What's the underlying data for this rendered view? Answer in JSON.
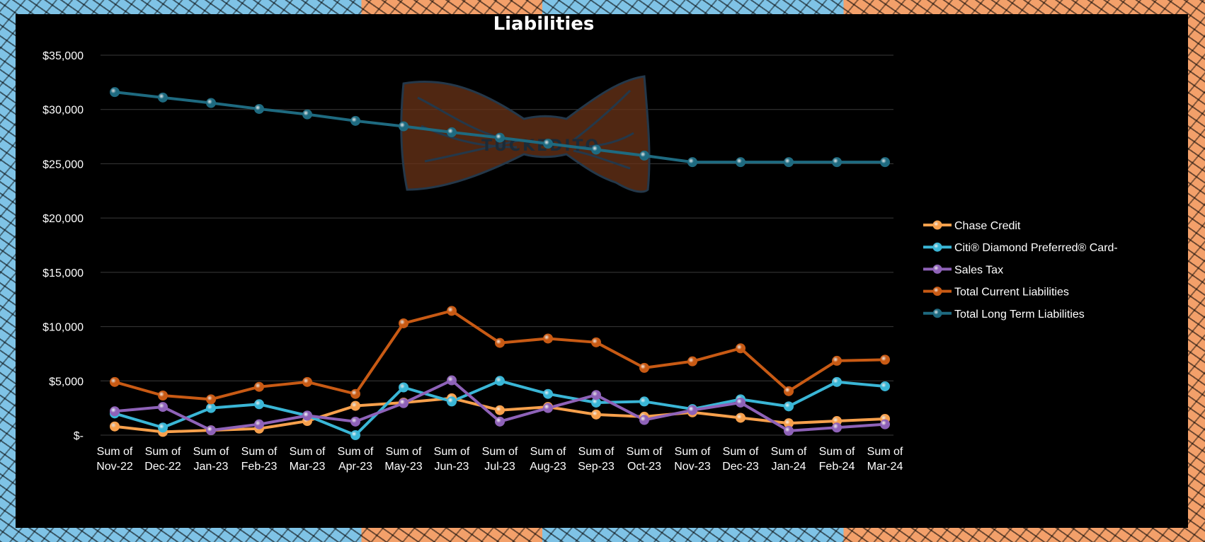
{
  "chart_data": {
    "type": "line",
    "title": "Liabilities",
    "xlabel": "",
    "ylabel": "",
    "ylim": [
      0,
      35000
    ],
    "y_ticks": [
      {
        "value": 0,
        "label": "$-"
      },
      {
        "value": 5000,
        "label": "$5,000"
      },
      {
        "value": 10000,
        "label": "$10,000"
      },
      {
        "value": 15000,
        "label": "$15,000"
      },
      {
        "value": 20000,
        "label": "$20,000"
      },
      {
        "value": 25000,
        "label": "$25,000"
      },
      {
        "value": 30000,
        "label": "$30,000"
      },
      {
        "value": 35000,
        "label": "$35,000"
      }
    ],
    "grid": true,
    "legend_position": "right",
    "categories": [
      [
        "Sum of",
        "Nov-22"
      ],
      [
        "Sum of",
        "Dec-22"
      ],
      [
        "Sum of",
        "Jan-23"
      ],
      [
        "Sum of",
        "Feb-23"
      ],
      [
        "Sum of",
        "Mar-23"
      ],
      [
        "Sum of",
        "Apr-23"
      ],
      [
        "Sum of",
        "May-23"
      ],
      [
        "Sum of",
        "Jun-23"
      ],
      [
        "Sum of",
        "Jul-23"
      ],
      [
        "Sum of",
        "Aug-23"
      ],
      [
        "Sum of",
        "Sep-23"
      ],
      [
        "Sum of",
        "Oct-23"
      ],
      [
        "Sum of",
        "Nov-23"
      ],
      [
        "Sum of",
        "Dec-23"
      ],
      [
        "Sum of",
        "Jan-24"
      ],
      [
        "Sum of",
        "Feb-24"
      ],
      [
        "Sum of",
        "Mar-24"
      ]
    ],
    "series": [
      {
        "name": "Chase Credit",
        "color": "#f7a04c",
        "values": [
          800,
          300,
          450,
          600,
          1300,
          2700,
          3000,
          3400,
          2300,
          2600,
          1900,
          1700,
          2100,
          1600,
          1100,
          1300,
          1500
        ]
      },
      {
        "name": "Citi® Diamond Preferred® Card-",
        "color": "#3ab6d6",
        "values": [
          2000,
          700,
          2500,
          2850,
          1800,
          0,
          4400,
          3100,
          5000,
          3800,
          3000,
          3100,
          2400,
          3300,
          2650,
          4900,
          4500
        ]
      },
      {
        "name": "Sales Tax",
        "color": "#8e62b8",
        "values": [
          2200,
          2600,
          450,
          1000,
          1800,
          1250,
          2950,
          5050,
          1250,
          2500,
          3700,
          1400,
          2300,
          3000,
          400,
          700,
          1000
        ]
      },
      {
        "name": "Total Current Liabilities",
        "color": "#c85a14",
        "values": [
          4900,
          3650,
          3300,
          4450,
          4900,
          3800,
          10300,
          11450,
          8500,
          8900,
          8550,
          6200,
          6800,
          8000,
          4050,
          6850,
          6950
        ]
      },
      {
        "name": "Total Long Term Liabilities",
        "color": "#1e6a80",
        "values": [
          31600,
          31100,
          30600,
          30050,
          29550,
          28950,
          28450,
          27900,
          27400,
          26850,
          26300,
          25750,
          25150,
          25150,
          25150,
          25150,
          25150
        ]
      }
    ]
  },
  "watermark": {
    "text": "TUCKEDITO"
  },
  "colors": {
    "background": "#000000",
    "text": "#ffffff",
    "grid": "#3a3a3a"
  }
}
